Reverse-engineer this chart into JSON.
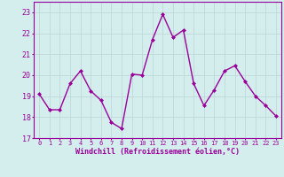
{
  "x": [
    0,
    1,
    2,
    3,
    4,
    5,
    6,
    7,
    8,
    9,
    10,
    11,
    12,
    13,
    14,
    15,
    16,
    17,
    18,
    19,
    20,
    21,
    22,
    23
  ],
  "y": [
    19.1,
    18.35,
    18.35,
    19.6,
    20.2,
    19.25,
    18.8,
    17.75,
    17.45,
    20.05,
    20.0,
    21.7,
    22.9,
    21.8,
    22.15,
    19.6,
    18.55,
    19.3,
    20.2,
    20.45,
    19.7,
    19.0,
    18.55,
    18.05
  ],
  "line_color": "#990099",
  "marker": "D",
  "marker_size": 2,
  "xlabel": "Windchill (Refroidissement éolien,°C)",
  "xlabel_fontsize": 6.0,
  "yticks": [
    17,
    18,
    19,
    20,
    21,
    22,
    23
  ],
  "xlim": [
    -0.5,
    23.5
  ],
  "ylim": [
    17,
    23.5
  ],
  "bg_color": "#d4eeee",
  "grid_color": "#b8d8d8",
  "tick_label_color": "#990099",
  "line_width": 1.0,
  "xtick_fontsize": 5.0,
  "ytick_fontsize": 6.0
}
